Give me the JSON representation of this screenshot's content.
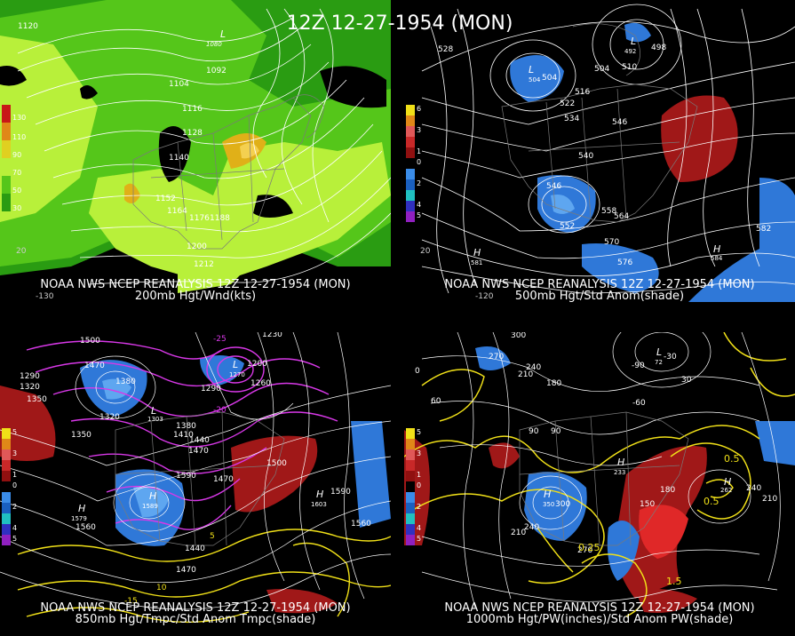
{
  "main_title": "12Z 12-27-1954 (MON)",
  "panels": [
    {
      "caption1": "NOAA NWS NCEP REANALYSIS 12Z 12-27-1954 (MON)",
      "caption2": "200mb Hgt/Wnd(kts)",
      "legend": [
        "130",
        "110",
        "90",
        "70",
        "50",
        "30"
      ],
      "contour_labels": [
        "1120",
        "1080",
        "1092",
        "1104",
        "1116",
        "1128",
        "1140",
        "1152",
        "1164",
        "1176",
        "1188",
        "1200",
        "1212"
      ],
      "lon_labels": [
        "-130",
        "20"
      ]
    },
    {
      "caption1": "NOAA NWS NCEP REANALYSIS 12Z 12-27-1954 (MON)",
      "caption2": "500mb Hgt/Std Anom(shade)",
      "legend": [
        "6",
        "4",
        "3",
        "2",
        "1",
        "0",
        "1",
        "2",
        "3",
        "4",
        "5"
      ],
      "contour_labels": [
        "504",
        "516",
        "522",
        "528",
        "534",
        "540",
        "546",
        "552",
        "558",
        "564",
        "570",
        "576",
        "582",
        "504",
        "510",
        "498",
        "528",
        "492"
      ],
      "lon_labels": [
        "20",
        "-120"
      ]
    },
    {
      "caption1": "NOAA NWS NCEP REANALYSIS 12Z 12-27-1954 (MON)",
      "caption2": "850mb Hgt/Tmpc/Std Anom Tmpc(shade)",
      "legend": [
        "5",
        "4",
        "3",
        "2",
        "1",
        "0",
        "1",
        "2",
        "3",
        "4",
        "5"
      ],
      "contour_labels": [
        "1500",
        "1470",
        "1380",
        "1320",
        "1350",
        "1380",
        "1410",
        "1440",
        "1470",
        "1500",
        "1560",
        "1590",
        "1470",
        "1440",
        "1410",
        "1290",
        "1260",
        "1230",
        "1200",
        "1290",
        "1320",
        "1350"
      ],
      "lon_labels": [
        "-20",
        "-15",
        "-25",
        "5",
        "10"
      ]
    },
    {
      "caption1": "NOAA NWS NCEP REANALYSIS 12Z 12-27-1954 (MON)",
      "caption2": "1000mb Hgt/PW(inches)/Std Anom PW(shade)",
      "legend": [
        "5",
        "4",
        "3",
        "2",
        "1",
        "0",
        "1",
        "2",
        "3",
        "4",
        "5"
      ],
      "contour_labels": [
        "300",
        "270",
        "240",
        "210",
        "180",
        "90",
        "60",
        "30",
        "90",
        "180",
        "150",
        "210",
        "240",
        "270",
        "300",
        "0.25",
        "0.5",
        "1.5",
        "0.5"
      ],
      "lon_labels": [
        "-90",
        "-60",
        "-30",
        "0",
        "30"
      ]
    }
  ],
  "pressure_centers": [
    {
      "panel": 0,
      "letter": "L",
      "value": "1080"
    },
    {
      "panel": 1,
      "letter": "L",
      "value": "504"
    },
    {
      "panel": 1,
      "letter": "L",
      "value": "492"
    },
    {
      "panel": 1,
      "letter": "L",
      "value": "510"
    },
    {
      "panel": 1,
      "letter": "H",
      "value": "581"
    },
    {
      "panel": 1,
      "letter": "H",
      "value": "584"
    },
    {
      "panel": 2,
      "letter": "H",
      "value": "1589"
    },
    {
      "panel": 2,
      "letter": "H",
      "value": "1603"
    },
    {
      "panel": 2,
      "letter": "L",
      "value": "1270"
    },
    {
      "panel": 2,
      "letter": "L",
      "value": "1303"
    },
    {
      "panel": 2,
      "letter": "H",
      "value": "1579"
    },
    {
      "panel": 3,
      "letter": "H",
      "value": "350"
    },
    {
      "panel": 3,
      "letter": "H",
      "value": "233"
    },
    {
      "panel": 3,
      "letter": "H",
      "value": "262"
    },
    {
      "panel": 3,
      "letter": "L",
      "value": "72"
    }
  ],
  "colors": {
    "green_light": "#b8f03a",
    "green_mid": "#55c61a",
    "green_dark": "#2a9c12",
    "yellow_orange": "#e0b018",
    "blue_anom": "#2f78d8",
    "blue_dark": "#1b58b8",
    "red_anom": "#a01818",
    "red_bright": "#e02828",
    "magenta": "#d838e8",
    "yellow_contour": "#f0e018"
  }
}
